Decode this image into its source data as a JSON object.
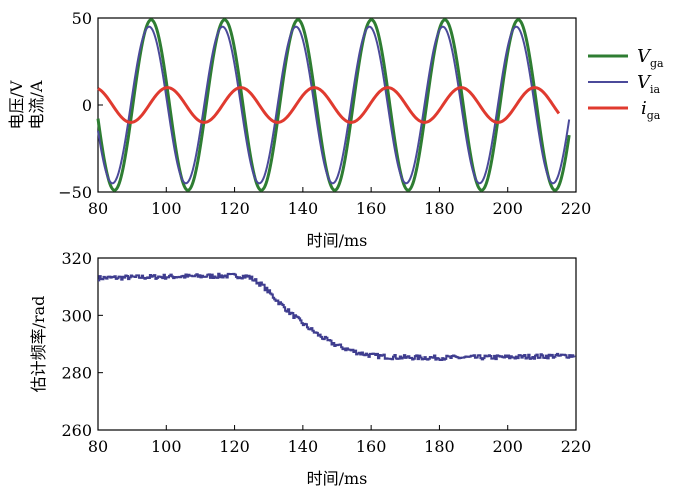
{
  "chart_data": [
    {
      "type": "line",
      "xlabel": "时间/ms",
      "ylabel_lines": [
        "电压/V",
        "电流/A"
      ],
      "xlim": [
        80,
        220
      ],
      "ylim": [
        -50,
        50
      ],
      "xticks": [
        "80",
        "100",
        "120",
        "140",
        "160",
        "180",
        "200",
        "220"
      ],
      "yticks": [
        "−50",
        "0",
        "50"
      ],
      "legend_position": "right",
      "series": [
        {
          "name": "V_ga",
          "legend_main": "V",
          "legend_sub": "ga",
          "color": "#2e7d32",
          "amplitude": 49,
          "frequency_hz": 46.5,
          "phase_deg": -70,
          "x_range": [
            80,
            218
          ]
        },
        {
          "name": "V_ia",
          "legend_main": "V",
          "legend_sub": "ia",
          "color": "#4b4a9a",
          "amplitude": 45,
          "frequency_hz": 46.5,
          "phase_deg": -60,
          "x_range": [
            80,
            218
          ]
        },
        {
          "name": "i_ga",
          "legend_main": "i",
          "legend_sub": "ga",
          "color": "#e03a2f",
          "amplitude": 10,
          "frequency_hz": 46.5,
          "phase_deg": -150,
          "x_range": [
            80,
            215
          ]
        }
      ]
    },
    {
      "type": "line",
      "xlabel": "时间/ms",
      "ylabel": "估计频率/rad",
      "xlim": [
        80,
        220
      ],
      "ylim": [
        260,
        320
      ],
      "xticks": [
        "80",
        "100",
        "120",
        "140",
        "160",
        "180",
        "200",
        "220"
      ],
      "yticks": [
        "260",
        "280",
        "300",
        "320"
      ],
      "series": [
        {
          "name": "estimated_frequency",
          "color": "#3f3d8f",
          "noisy": true,
          "points": [
            [
              80,
              313.0
            ],
            [
              100,
              313.5
            ],
            [
              120,
              313.8
            ],
            [
              124,
              313.5
            ],
            [
              128,
              310.5
            ],
            [
              132,
              305.5
            ],
            [
              136,
              301.0
            ],
            [
              140,
              297.0
            ],
            [
              144,
              293.5
            ],
            [
              148,
              290.5
            ],
            [
              152,
              288.5
            ],
            [
              156,
              287.0
            ],
            [
              160,
              286.0
            ],
            [
              165,
              285.5
            ],
            [
              170,
              285.3
            ],
            [
              180,
              285.2
            ],
            [
              200,
              285.4
            ],
            [
              220,
              286.0
            ]
          ]
        }
      ]
    }
  ]
}
